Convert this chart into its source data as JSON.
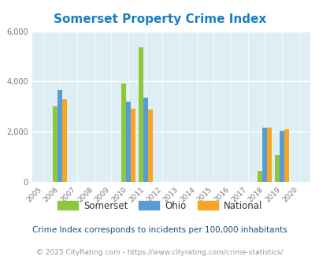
{
  "title": "Somerset Property Crime Index",
  "years": [
    2005,
    2006,
    2007,
    2008,
    2009,
    2010,
    2011,
    2012,
    2013,
    2014,
    2015,
    2016,
    2017,
    2018,
    2019,
    2020
  ],
  "somerset": {
    "2006": 3020,
    "2010": 3920,
    "2011": 5370,
    "2018": 450,
    "2019": 1080
  },
  "ohio": {
    "2006": 3670,
    "2010": 3200,
    "2011": 3360,
    "2018": 2150,
    "2019": 2040
  },
  "national": {
    "2006": 3300,
    "2010": 2900,
    "2011": 2870,
    "2018": 2175,
    "2019": 2085
  },
  "somerset_color": "#8dc63f",
  "ohio_color": "#5b9bd5",
  "national_color": "#f5a623",
  "bg_color": "#deeef5",
  "plot_bg": "#deeef5",
  "title_color": "#1a7fc1",
  "tick_color": "#777777",
  "subtitle_color": "#1a4f7a",
  "footer_color": "#999999",
  "ylabel_max": 6000,
  "yticks": [
    0,
    2000,
    4000,
    6000
  ],
  "subtitle": "Crime Index corresponds to incidents per 100,000 inhabitants",
  "footer": "© 2025 CityRating.com - https://www.cityrating.com/crime-statistics/",
  "bar_width": 0.28
}
